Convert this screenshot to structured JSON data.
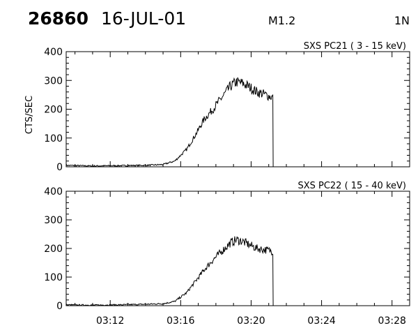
{
  "header": {
    "event_id": "26860",
    "date": "16-JUL-01",
    "goes_class": "M1.2",
    "flag": "1N"
  },
  "chart_data": [
    {
      "type": "line",
      "title": "SXS PC21  (  3 - 15 keV)",
      "ylabel": "CTS/SEC",
      "xlabel": "",
      "xlim": [
        "03:09:30",
        "03:29:00"
      ],
      "ylim": [
        0,
        400
      ],
      "yticks": [
        0,
        100,
        200,
        300,
        400
      ],
      "xticks": [
        "03:12",
        "03:16",
        "03:20",
        "03:24",
        "03:28"
      ],
      "grid": false,
      "series": [
        {
          "values": [
            [
              "03:09:30",
              5
            ],
            [
              "03:11:00",
              3
            ],
            [
              "03:12:30",
              4
            ],
            [
              "03:14:00",
              5
            ],
            [
              "03:15:00",
              8
            ],
            [
              "03:15:40",
              20
            ],
            [
              "03:16:20",
              60
            ],
            [
              "03:16:50",
              110
            ],
            [
              "03:17:20",
              165
            ],
            [
              "03:17:50",
              200
            ],
            [
              "03:18:20",
              240
            ],
            [
              "03:18:50",
              280
            ],
            [
              "03:19:10",
              295
            ],
            [
              "03:19:30",
              290
            ],
            [
              "03:19:50",
              280
            ],
            [
              "03:20:20",
              260
            ],
            [
              "03:20:50",
              250
            ],
            [
              "03:21:15",
              240
            ]
          ]
        }
      ]
    },
    {
      "type": "line",
      "title": "SXS PC22  ( 15 - 40 keV)",
      "ylabel": "",
      "xlabel": "",
      "xlim": [
        "03:09:30",
        "03:29:00"
      ],
      "ylim": [
        0,
        400
      ],
      "yticks": [
        0,
        100,
        200,
        300,
        400
      ],
      "xticks": [
        "03:12",
        "03:16",
        "03:20",
        "03:24",
        "03:28"
      ],
      "grid": false,
      "series": [
        {
          "values": [
            [
              "03:09:30",
              3
            ],
            [
              "03:11:00",
              2
            ],
            [
              "03:12:30",
              3
            ],
            [
              "03:14:00",
              5
            ],
            [
              "03:15:00",
              7
            ],
            [
              "03:15:40",
              15
            ],
            [
              "03:16:20",
              45
            ],
            [
              "03:16:50",
              85
            ],
            [
              "03:17:20",
              125
            ],
            [
              "03:17:50",
              160
            ],
            [
              "03:18:20",
              190
            ],
            [
              "03:18:50",
              220
            ],
            [
              "03:19:10",
              230
            ],
            [
              "03:19:30",
              225
            ],
            [
              "03:19:50",
              215
            ],
            [
              "03:20:20",
              200
            ],
            [
              "03:20:50",
              195
            ],
            [
              "03:21:15",
              190
            ]
          ]
        }
      ]
    }
  ]
}
